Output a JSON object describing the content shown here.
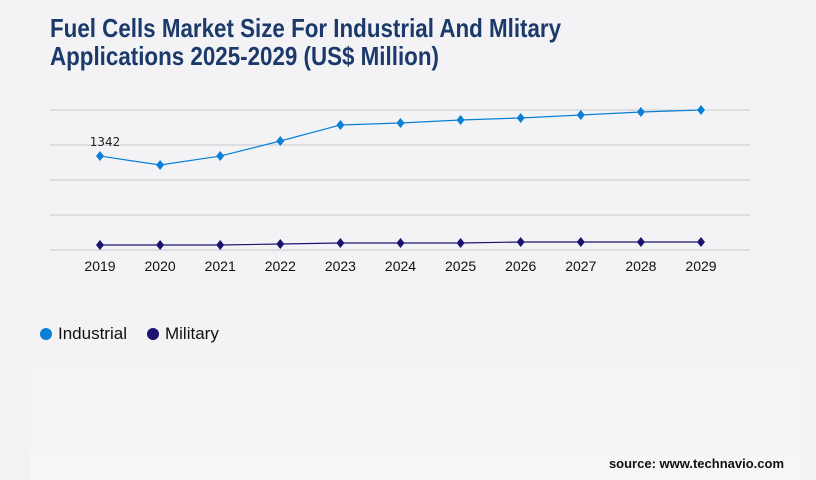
{
  "title_line1": "Fuel Cells Market Size For Industrial And Mlitary",
  "title_line2": "Applications 2025-2029 (US$ Million)",
  "source": "source: www.technavio.com",
  "chart_data": {
    "type": "line",
    "title": "Fuel Cells Market Size For Industrial And Mlitary Applications 2025-2029 (US$ Million)",
    "categories": [
      "2019",
      "2020",
      "2021",
      "2022",
      "2023",
      "2024",
      "2025",
      "2026",
      "2027",
      "2028",
      "2029"
    ],
    "ylim": [
      0,
      2000
    ],
    "grid": true,
    "legend_position": "bottom-left",
    "series": [
      {
        "name": "Industrial",
        "color": "#0a7fd6",
        "values": [
          1342,
          1214,
          1342,
          1557,
          1786,
          1814,
          1857,
          1886,
          1929,
          1971,
          2000
        ]
      },
      {
        "name": "Military",
        "color": "#1a1470",
        "values": [
          71,
          71,
          71,
          86,
          100,
          100,
          100,
          114,
          114,
          114,
          114
        ]
      }
    ],
    "annotations": [
      {
        "series": "Industrial",
        "category": "2019",
        "text": "1342"
      }
    ]
  }
}
